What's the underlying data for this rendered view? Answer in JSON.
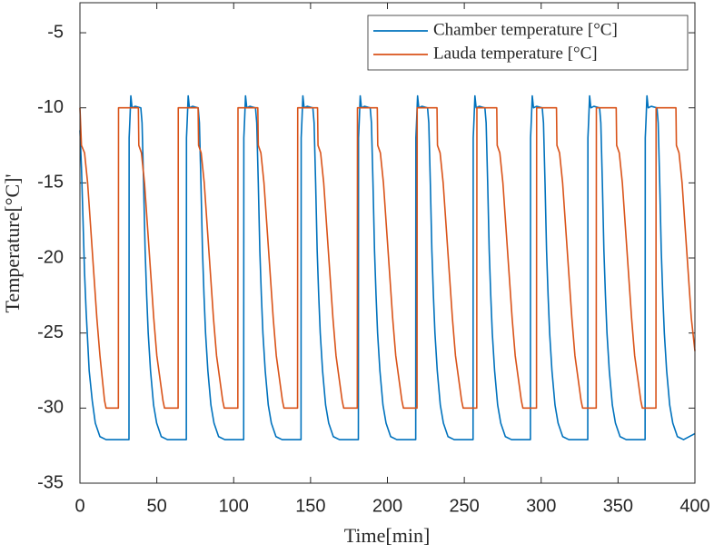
{
  "chart_data": {
    "type": "line",
    "xlabel": "Time[min]",
    "ylabel": "Temperature[°C]'",
    "xlim": [
      0,
      400
    ],
    "xticks": [
      0,
      50,
      100,
      150,
      200,
      250,
      300,
      350,
      400
    ],
    "ylim": [
      -35,
      -3
    ],
    "yticks": [
      -35,
      -30,
      -25,
      -20,
      -15,
      -10,
      -5
    ],
    "grid": false,
    "legend": "northeast",
    "series": [
      {
        "name": "Chamber temperature [°C]",
        "color": "#0072bd",
        "x": [
          0,
          1,
          2,
          3,
          4,
          5,
          6,
          8,
          10,
          13,
          17,
          31.9,
          32,
          32.5,
          33.1,
          33.9,
          35.9,
          39.6,
          40.4,
          41.4,
          42.4,
          43.4,
          44.4,
          45.9,
          47.9,
          49.9,
          52.9,
          56.9,
          69.2,
          69.3,
          69.8,
          70.4,
          71.2,
          73.2,
          76.9,
          77.7,
          78.7,
          79.7,
          80.7,
          81.7,
          83.2,
          85.2,
          87.2,
          90.2,
          94.2,
          106.5,
          106.6,
          107.1,
          107.7,
          108.5,
          110.5,
          114.2,
          115,
          116,
          117,
          118,
          119,
          120.5,
          122.5,
          124.5,
          127.5,
          131.5,
          143.8,
          143.9,
          144.4,
          145,
          145.8,
          147.8,
          151.5,
          152.3,
          153.3,
          154.3,
          155.3,
          156.3,
          157.8,
          159.8,
          161.8,
          164.8,
          168.8,
          181.1,
          181.2,
          181.7,
          182.3,
          183.1,
          185.1,
          188.8,
          189.6,
          190.6,
          191.6,
          192.6,
          193.6,
          195.1,
          197.1,
          199.1,
          202.1,
          206.1,
          218.4,
          218.5,
          219,
          219.6,
          220.4,
          222.4,
          226.1,
          226.9,
          227.9,
          228.9,
          229.9,
          230.9,
          232.4,
          234.4,
          236.4,
          239.4,
          243.4,
          255.7,
          255.8,
          256.3,
          256.9,
          257.7,
          259.7,
          263.4,
          264.2,
          265.2,
          266.2,
          267.2,
          268.2,
          269.7,
          271.7,
          273.7,
          276.7,
          280.7,
          293,
          293.1,
          293.6,
          294.2,
          295,
          297,
          300.7,
          301.5,
          302.5,
          303.5,
          304.5,
          305.5,
          307,
          309,
          311,
          314,
          318,
          330.3,
          330.4,
          330.9,
          331.5,
          332.3,
          334.3,
          338,
          338.8,
          339.8,
          340.8,
          341.8,
          342.8,
          344.3,
          346.3,
          348.3,
          351.3,
          355.3,
          367.6,
          367.7,
          368.2,
          368.8,
          369.6,
          371.6,
          375.3,
          376.1,
          377.1,
          378.1,
          379.1,
          380.1,
          381.6,
          383.6,
          385.6,
          388.6,
          392.6,
          400
        ],
        "values": [
          -11.5,
          -14,
          -17.5,
          -21,
          -23.5,
          -25.5,
          -27.5,
          -29.5,
          -31,
          -31.9,
          -32.1,
          -32.1,
          -12,
          -10.8,
          -9.2,
          -10,
          -9.9,
          -10,
          -11,
          -15,
          -19.5,
          -22.5,
          -25,
          -27.5,
          -29.8,
          -31,
          -31.9,
          -32.1,
          -32.1,
          -12,
          -10.8,
          -9.2,
          -10,
          -9.9,
          -10,
          -11,
          -15,
          -19.5,
          -22.5,
          -25,
          -27.5,
          -29.8,
          -31,
          -31.9,
          -32.1,
          -32.1,
          -12,
          -10.8,
          -9.2,
          -10,
          -9.9,
          -10,
          -11,
          -15,
          -19.5,
          -22.5,
          -25,
          -27.5,
          -29.8,
          -31,
          -31.9,
          -32.1,
          -32.1,
          -12,
          -10.8,
          -9.2,
          -10,
          -9.9,
          -10,
          -11,
          -15,
          -19.5,
          -22.5,
          -25,
          -27.5,
          -29.8,
          -31,
          -31.9,
          -32.1,
          -32.1,
          -12,
          -10.8,
          -9.2,
          -10,
          -9.9,
          -10,
          -11,
          -15,
          -19.5,
          -22.5,
          -25,
          -27.5,
          -29.8,
          -31,
          -31.9,
          -32.1,
          -32.1,
          -12,
          -10.8,
          -9.2,
          -10,
          -9.9,
          -10,
          -11,
          -15,
          -19.5,
          -22.5,
          -25,
          -27.5,
          -29.8,
          -31,
          -31.9,
          -32.1,
          -32.1,
          -12,
          -10.8,
          -9.2,
          -10,
          -9.9,
          -10,
          -11,
          -15,
          -19.5,
          -22.5,
          -25,
          -27.5,
          -29.8,
          -31,
          -31.9,
          -32.1,
          -32.1,
          -12,
          -10.8,
          -9.2,
          -10,
          -9.9,
          -10,
          -11,
          -15,
          -19.5,
          -22.5,
          -25,
          -27.5,
          -29.8,
          -31,
          -31.9,
          -32.1,
          -32.1,
          -12,
          -10.8,
          -9.2,
          -10,
          -9.9,
          -10,
          -11,
          -15,
          -19.5,
          -22.5,
          -25,
          -27.5,
          -29.8,
          -31,
          -31.9,
          -32.1,
          -32.1,
          -12,
          -10.8,
          -9.2,
          -10,
          -9.9,
          -10,
          -11,
          -15,
          -19.5,
          -22.5,
          -25,
          -27.5,
          -29.8,
          -31,
          -31.9,
          -32.1,
          -31.7
        ]
      },
      {
        "name": "Lauda temperature [°C]",
        "color": "#d95319",
        "x": [
          0,
          1,
          3,
          5,
          7,
          9,
          11,
          13,
          14.5,
          16,
          17,
          25,
          25.1,
          38,
          38.3,
          40,
          42,
          44,
          46,
          48,
          50,
          52,
          54,
          55,
          63.85,
          63.95,
          76.85,
          77.15,
          78.85,
          80.85,
          82.85,
          84.85,
          86.85,
          88.85,
          90.85,
          92.85,
          93.85,
          102.7,
          102.8,
          115.7,
          116,
          117.7,
          119.7,
          121.7,
          123.7,
          125.7,
          127.7,
          129.7,
          131.7,
          132.7,
          141.55,
          141.65,
          154.55,
          154.85,
          156.55,
          158.55,
          160.55,
          162.55,
          164.55,
          166.55,
          168.55,
          170.55,
          171.55,
          180.4,
          180.5,
          193.4,
          193.7,
          195.4,
          197.4,
          199.4,
          201.4,
          203.4,
          205.4,
          207.4,
          209.4,
          210.4,
          219.25,
          219.35,
          232.25,
          232.55,
          234.25,
          236.25,
          238.25,
          240.25,
          242.25,
          244.25,
          246.25,
          248.25,
          249.25,
          258.1,
          258.2,
          271.1,
          271.4,
          273.1,
          275.1,
          277.1,
          279.1,
          281.1,
          283.1,
          285.1,
          287.1,
          288.1,
          296.95,
          297.05,
          309.95,
          310.25,
          311.95,
          313.95,
          315.95,
          317.95,
          319.95,
          321.95,
          323.95,
          325.95,
          326.95,
          335.8,
          335.9,
          348.8,
          349.1,
          350.8,
          352.8,
          354.8,
          356.8,
          358.8,
          360.8,
          362.8,
          364.8,
          365.8,
          374.65,
          374.75,
          387.65,
          387.95,
          389.65,
          391.65,
          393.65,
          395.65,
          397.65,
          400
        ],
        "values": [
          -10,
          -12.5,
          -13,
          -15,
          -18,
          -21,
          -24,
          -26.5,
          -28,
          -29.5,
          -30,
          -30,
          -10,
          -10,
          -12.5,
          -13,
          -15,
          -18,
          -21,
          -24,
          -26.5,
          -28,
          -29.5,
          -30,
          -30,
          -10,
          -10,
          -12.5,
          -13,
          -15,
          -18,
          -21,
          -24,
          -26.5,
          -28,
          -29.5,
          -30,
          -30,
          -10,
          -10,
          -12.5,
          -13,
          -15,
          -18,
          -21,
          -24,
          -26.5,
          -28,
          -29.5,
          -30,
          -30,
          -10,
          -10,
          -12.5,
          -13,
          -15,
          -18,
          -21,
          -24,
          -26.5,
          -28,
          -29.5,
          -30,
          -30,
          -10,
          -10,
          -12.5,
          -13,
          -15,
          -18,
          -21,
          -24,
          -26.5,
          -28,
          -29.5,
          -30,
          -30,
          -10,
          -10,
          -12.5,
          -13,
          -15,
          -18,
          -21,
          -24,
          -26.5,
          -28,
          -29.5,
          -30,
          -30,
          -10,
          -10,
          -12.5,
          -13,
          -15,
          -18,
          -21,
          -24,
          -26.5,
          -28,
          -29.5,
          -30,
          -30,
          -10,
          -10,
          -12.5,
          -13,
          -15,
          -18,
          -21,
          -24,
          -26.5,
          -28,
          -29.5,
          -30,
          -30,
          -10,
          -10,
          -12.5,
          -13,
          -15,
          -18,
          -21,
          -24,
          -26.5,
          -28,
          -29.5,
          -30,
          -30,
          -10,
          -10,
          -12.5,
          -13,
          -15,
          -18,
          -21,
          -24,
          -26.2
        ]
      }
    ]
  }
}
